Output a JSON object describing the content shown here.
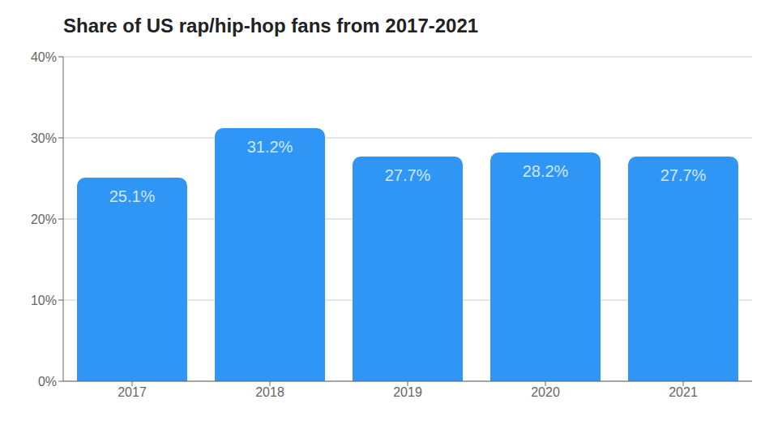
{
  "chart_data": {
    "type": "bar",
    "title": "Share of US rap/hip-hop fans from 2017-2021",
    "categories": [
      "2017",
      "2018",
      "2019",
      "2020",
      "2021"
    ],
    "values": [
      25.1,
      31.2,
      27.7,
      28.2,
      27.7
    ],
    "value_labels": [
      "25.1%",
      "31.2%",
      "27.7%",
      "28.2%",
      "27.7%"
    ],
    "color": "#2f96f5",
    "ylim": [
      0,
      40
    ],
    "yticks": [
      {
        "value": 0,
        "label": "0%"
      },
      {
        "value": 10,
        "label": "10%"
      },
      {
        "value": 20,
        "label": "20%"
      },
      {
        "value": 30,
        "label": "30%"
      },
      {
        "value": 40,
        "label": "40%"
      }
    ],
    "grid": true,
    "data_labels": true
  }
}
